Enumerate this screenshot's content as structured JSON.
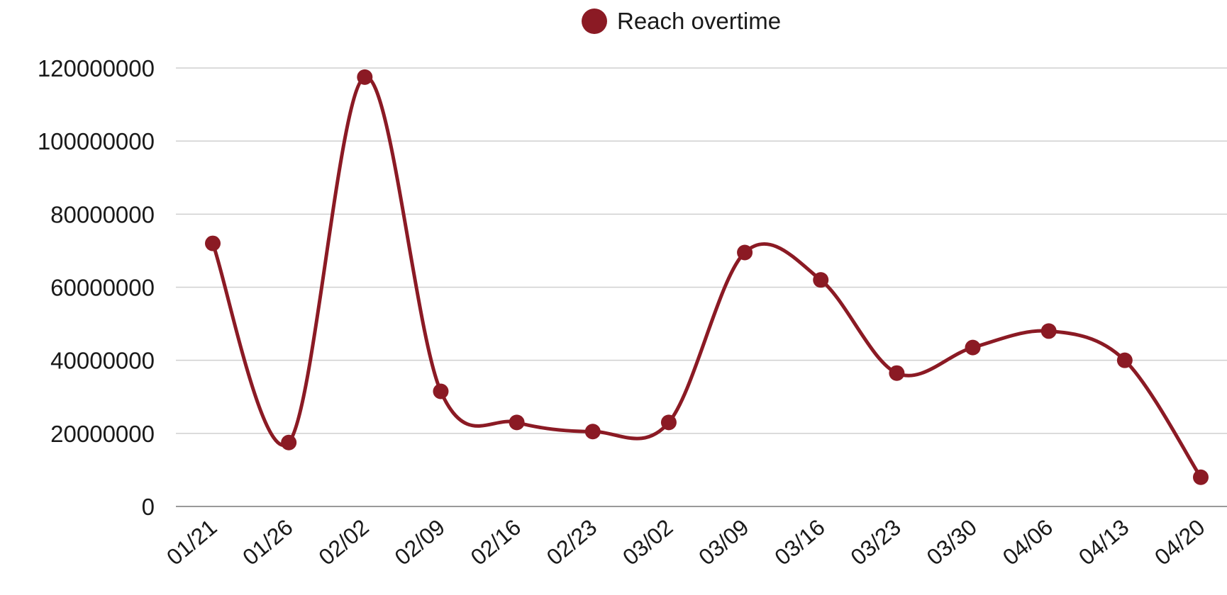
{
  "chart_data": {
    "type": "line",
    "title": "",
    "xlabel": "",
    "ylabel": "",
    "categories": [
      "01/21",
      "01/26",
      "02/02",
      "02/09",
      "02/16",
      "02/23",
      "03/02",
      "03/09",
      "03/16",
      "03/23",
      "03/30",
      "04/06",
      "04/13",
      "04/20"
    ],
    "series": [
      {
        "name": "Reach overtime",
        "color": "#8b1a24",
        "values": [
          72000000,
          17500000,
          117500000,
          31500000,
          23000000,
          20500000,
          23000000,
          69500000,
          62000000,
          36500000,
          43500000,
          48000000,
          40000000,
          8000000
        ]
      }
    ],
    "yticks": [
      "0",
      "20000000",
      "40000000",
      "60000000",
      "80000000",
      "100000000",
      "120000000"
    ],
    "ylim": [
      0,
      120000000
    ],
    "grid": true,
    "legend_position": "top-center",
    "smooth": true
  }
}
